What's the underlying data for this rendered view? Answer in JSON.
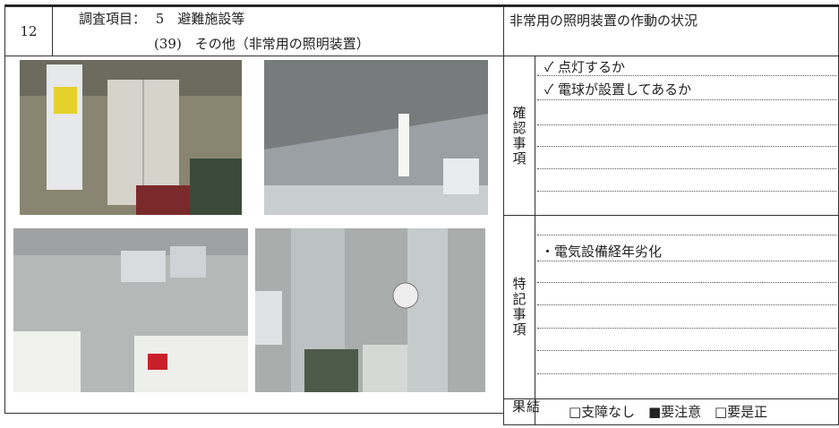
{
  "header": {
    "number": "12",
    "item_label": "調査項目：",
    "item": "5　避難施設等",
    "subitem": "(39)　その他（非常用の照明装置）",
    "condition": "非常用の照明装置の作動の状況"
  },
  "check": {
    "label": "確認事項",
    "items": [
      "✓ 点灯するか",
      "✓ 電球が設置してあるか"
    ]
  },
  "notes": {
    "label": "特記事項",
    "items": [
      "・電気設備経年劣化"
    ]
  },
  "result": {
    "label": "結果",
    "options": [
      "□支障なし",
      "■要注意",
      "□要是正"
    ]
  }
}
